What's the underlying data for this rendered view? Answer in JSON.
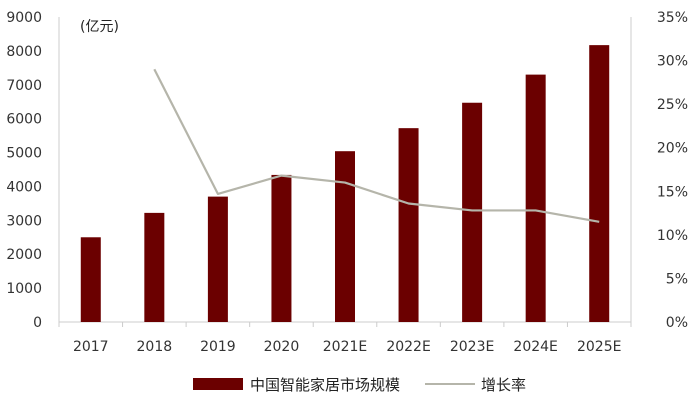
{
  "chart_data": {
    "type": "bar",
    "title": "",
    "unit_label": "(亿元)",
    "categories": [
      "2017",
      "2018",
      "2019",
      "2020",
      "2021E",
      "2022E",
      "2023E",
      "2024E",
      "2025E"
    ],
    "series": [
      {
        "name": "中国智能家居市场规模",
        "type": "bar",
        "axis": "left",
        "color": "#6b0000",
        "values": [
          2500,
          3220,
          3700,
          4340,
          5040,
          5720,
          6470,
          7300,
          8170
        ]
      },
      {
        "name": "增长率",
        "type": "line",
        "axis": "right",
        "color": "#b5b5aa",
        "values": [
          null,
          0.29,
          0.147,
          0.168,
          0.16,
          0.136,
          0.128,
          0.128,
          0.115
        ]
      }
    ],
    "y_left": {
      "min": 0,
      "max": 9000,
      "ticks": [
        "0",
        "1000",
        "2000",
        "3000",
        "4000",
        "5000",
        "6000",
        "7000",
        "8000",
        "9000"
      ]
    },
    "y_right": {
      "min": 0,
      "max": 0.35,
      "ticks": [
        "0%",
        "5%",
        "10%",
        "15%",
        "20%",
        "25%",
        "30%",
        "35%"
      ]
    },
    "grid": false,
    "legend_position": "bottom"
  }
}
